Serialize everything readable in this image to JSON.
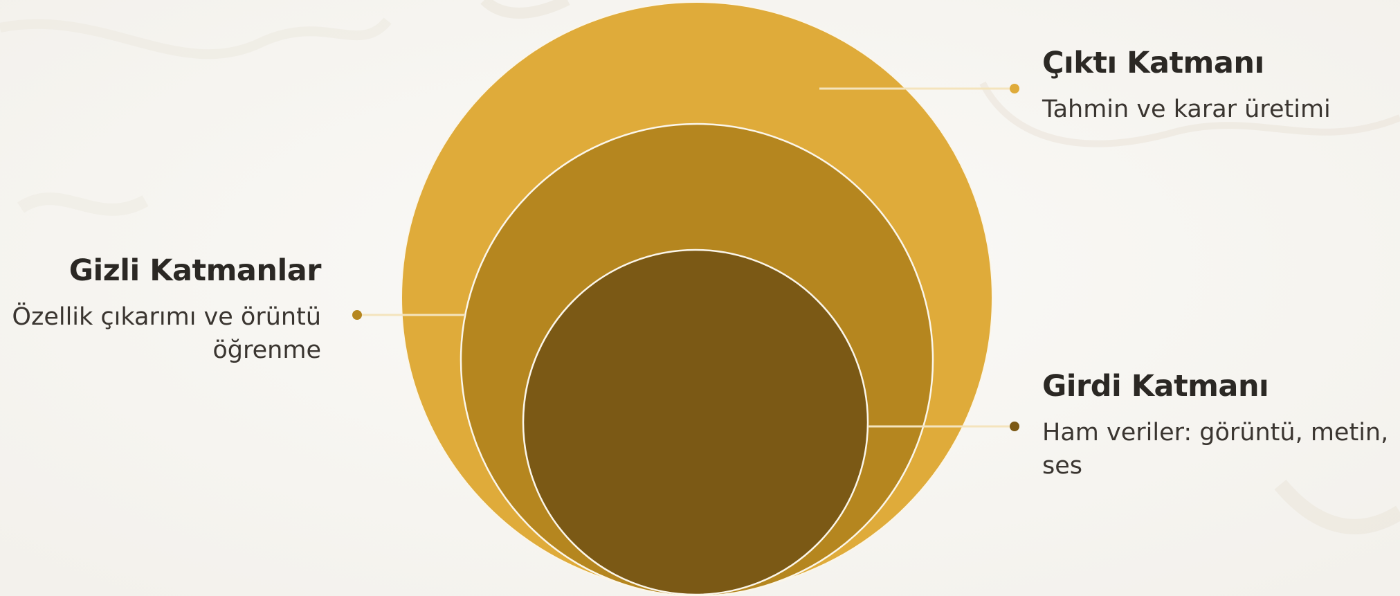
{
  "layers": [
    {
      "id": "output",
      "title": "Çıktı Katmanı",
      "description": "Tahmin ve karar üretimi",
      "fill": "#dfab3a",
      "marker_color": "#dfab3a"
    },
    {
      "id": "hidden",
      "title": "Gizli Katmanlar",
      "description": "Özellik çıkarımı ve örüntü öğrenme",
      "fill": "#b5861f",
      "marker_color": "#b5861f"
    },
    {
      "id": "input",
      "title": "Girdi Katmanı",
      "description": "Ham veriler: görüntü, metin, ses",
      "fill": "#7b5915",
      "marker_color": "#7b5915"
    }
  ],
  "colors": {
    "background": "#f8f7f4",
    "circle_stroke": "#fbf6ea",
    "connector_line": "#f4e4bd",
    "text_title": "#2b2824",
    "text_desc": "#3a3530"
  }
}
